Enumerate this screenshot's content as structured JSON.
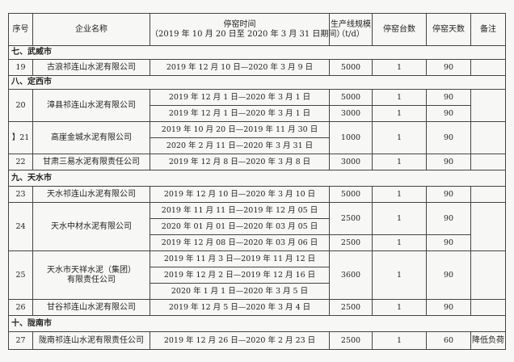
{
  "header": {
    "no": "序号",
    "name": "企业名称",
    "time": "停窑时间",
    "time_sub": "（2019 年 10 月 20 日至 2020 年 3 月 31 日期间）",
    "cap": "生产线规模",
    "cap_unit": "（t/d）",
    "units": "停窑台数",
    "days": "停窑天数",
    "note": "备注"
  },
  "sections": [
    "七、武威市",
    "八、定西市",
    "九、天水市",
    "十、陇南市"
  ],
  "rows": [
    {
      "no": "19",
      "name": "古浪祁连山水泥有限公司",
      "periods": [
        "2019 年 12 月 10 日—2020 年 3 月 9 日"
      ],
      "cap": "5000",
      "units": "1",
      "days": "90",
      "note": ""
    },
    {
      "no": "20",
      "name": "漳县祁连山水泥有限公司",
      "periods": [
        "2019 年 12 月 1 日—2020 年 3 月 1 日",
        "2019 年 12 月 1 日—2020 年 3 月 1 日"
      ],
      "cap": [
        "5000",
        "3000"
      ],
      "units": [
        "1",
        "1"
      ],
      "days": [
        "90",
        "90"
      ],
      "note": ""
    },
    {
      "no": "】21",
      "name": "高崖金城水泥有限公司",
      "periods": [
        "2019 年 10 月 20 日—2019 年 11 月 30 日",
        "2020 年 2 月 11 日—2020 年 3 月 31 日"
      ],
      "cap": "1000",
      "units": "1",
      "days": "90",
      "note": ""
    },
    {
      "no": "22",
      "name": "甘肃三易水泥有限责任公司",
      "periods": [
        "2019 年 12 月 8 日—2020 年 3 月 8 日"
      ],
      "cap": "3000",
      "units": "1",
      "days": "90",
      "note": ""
    },
    {
      "no": "23",
      "name": "天水祁连山水泥有限公司",
      "periods": [
        "2019 年 12 月 10 日—2020 年 3 月 10 日"
      ],
      "cap": "5000",
      "units": "1",
      "days": "90",
      "note": ""
    },
    {
      "no": "24",
      "name": "天水中材水泥有限公司",
      "periods": [
        "2019 年 11 月 11 日—2019 年 12 月 05 日",
        "2020 年 01 月 01 日—2020 年 03 月 05 日",
        "2019 年 12 月 08 日—2020 年 03 月 06 日"
      ],
      "cap": [
        "2500",
        "2500"
      ],
      "units": [
        "1",
        "1"
      ],
      "days": [
        "90",
        "90"
      ],
      "note": ""
    },
    {
      "no": "25",
      "name": "天水市天祥水泥（集团）",
      "name2": "有限责任公司",
      "periods": [
        "2019 年 11 月 3 日—2019 年 11 月 12 日",
        "2019 年 12 月 2 日—2019 年 12 月 16 日",
        "2020 年 1 月 1 日—2020 年 3 月 5 日"
      ],
      "cap": "3600",
      "units": "1",
      "days": "90",
      "note": ""
    },
    {
      "no": "26",
      "name": "甘谷祁连山水泥有限公司",
      "periods": [
        "2019 年 12 月 5 日—2020 年 3 月 4 日"
      ],
      "cap": "2500",
      "units": "1",
      "days": "90",
      "note": ""
    },
    {
      "no": "27",
      "name": "陇南祁连山水泥有限责任公司",
      "periods": [
        "2019 年 12 月 26 日—2020 年 2 月 23 日"
      ],
      "cap": "2500",
      "units": "1",
      "days": "60",
      "note": "降低负荷"
    }
  ]
}
